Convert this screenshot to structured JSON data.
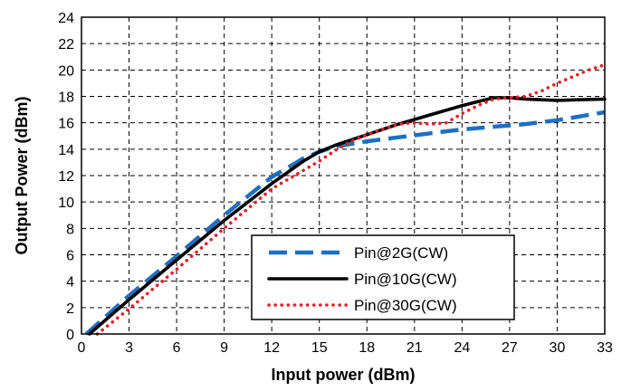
{
  "chart_data": {
    "type": "line",
    "xlabel": "Input power (dBm)",
    "ylabel": "Output Power (dBm)",
    "xlim": [
      0,
      33
    ],
    "ylim": [
      0,
      24
    ],
    "xticks": [
      0,
      3,
      6,
      9,
      12,
      15,
      18,
      21,
      24,
      27,
      30,
      33
    ],
    "yticks": [
      0,
      2,
      4,
      6,
      8,
      10,
      12,
      14,
      16,
      18,
      20,
      22,
      24
    ],
    "grid": true,
    "legend_position": "lower-right",
    "series": [
      {
        "name": "Pin@2G(CW)",
        "color": "#1f6fbf",
        "dash": "dashed",
        "points": [
          [
            0.3,
            0
          ],
          [
            3,
            2.9
          ],
          [
            6,
            5.9
          ],
          [
            9,
            9
          ],
          [
            12,
            11.9
          ],
          [
            14,
            13.3
          ],
          [
            15,
            13.8
          ],
          [
            16,
            14.2
          ],
          [
            17,
            14.4
          ],
          [
            18,
            14.6
          ],
          [
            20,
            14.9
          ],
          [
            22,
            15.2
          ],
          [
            24,
            15.5
          ],
          [
            26,
            15.7
          ],
          [
            28,
            15.9
          ],
          [
            30,
            16.2
          ],
          [
            33,
            16.8
          ]
        ]
      },
      {
        "name": "Pin@10G(CW)",
        "color": "#000000",
        "dash": "solid",
        "points": [
          [
            0.5,
            0
          ],
          [
            3,
            2.6
          ],
          [
            6,
            5.6
          ],
          [
            9,
            8.6
          ],
          [
            12,
            11.4
          ],
          [
            14,
            13.1
          ],
          [
            15,
            13.8
          ],
          [
            16,
            14.3
          ],
          [
            18,
            15.1
          ],
          [
            20,
            15.9
          ],
          [
            22,
            16.6
          ],
          [
            24,
            17.3
          ],
          [
            25,
            17.6
          ],
          [
            26,
            17.9
          ],
          [
            27,
            17.9
          ],
          [
            28,
            17.8
          ],
          [
            30,
            17.7
          ],
          [
            33,
            17.8
          ]
        ]
      },
      {
        "name": "Pin@30G(CW)",
        "color": "#e21f26",
        "dash": "dotted",
        "points": [
          [
            1,
            0
          ],
          [
            3,
            1.9
          ],
          [
            6,
            4.9
          ],
          [
            9,
            8
          ],
          [
            12,
            11
          ],
          [
            14,
            12.4
          ],
          [
            15,
            13.1
          ],
          [
            16,
            13.9
          ],
          [
            17,
            14.6
          ],
          [
            18,
            15.1
          ],
          [
            19,
            15.5
          ],
          [
            20,
            15.9
          ],
          [
            21,
            16
          ],
          [
            22,
            15.9
          ],
          [
            23,
            16
          ],
          [
            24,
            16.7
          ],
          [
            25,
            17.3
          ],
          [
            26,
            17.8
          ],
          [
            27,
            17.9
          ],
          [
            28,
            18
          ],
          [
            29,
            18.4
          ],
          [
            30,
            19
          ],
          [
            31,
            19.5
          ],
          [
            32,
            20
          ],
          [
            33,
            20.4
          ]
        ]
      }
    ]
  }
}
